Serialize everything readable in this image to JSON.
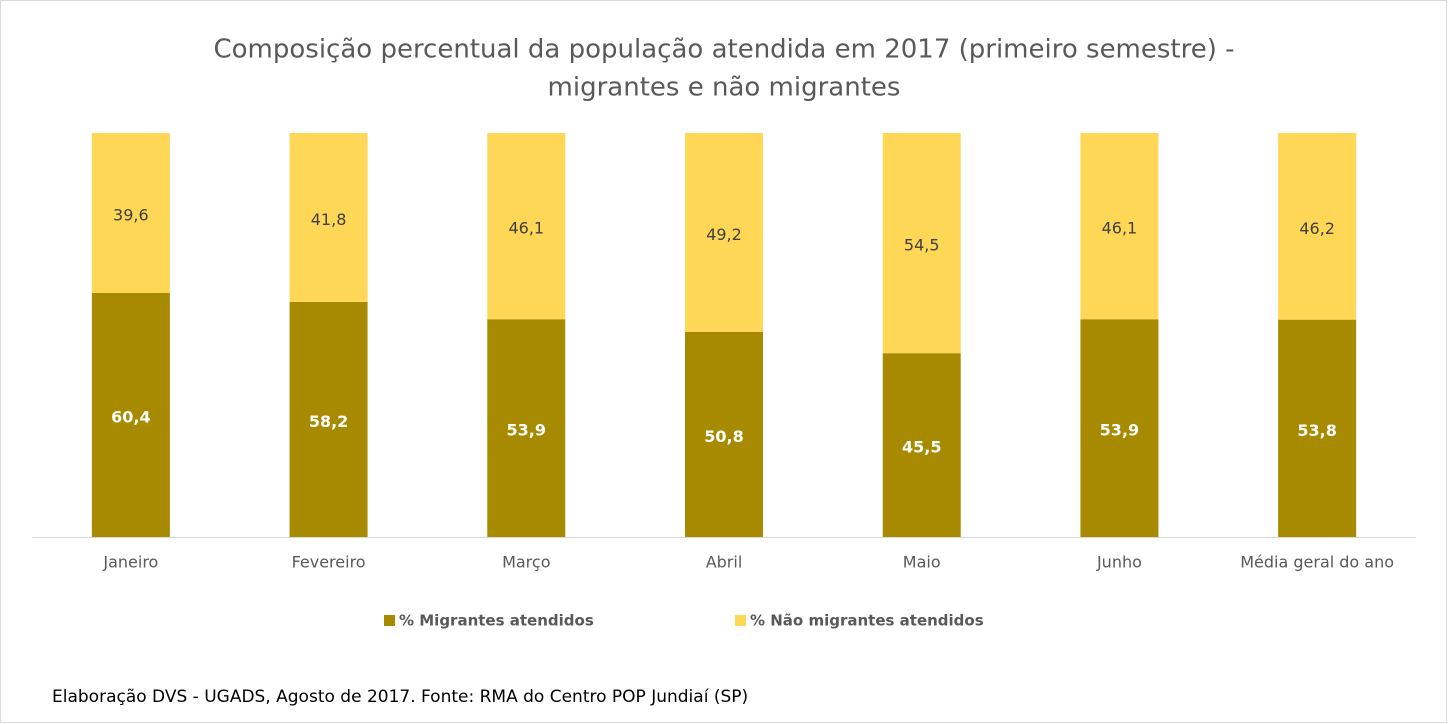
{
  "chart_data": {
    "type": "stacked_bar",
    "title": [
      "Composição percentual da população atendida em 2017 (primeiro semestre) -",
      "migrantes e não migrantes"
    ],
    "categories": [
      "Janeiro",
      "Fevereiro",
      "Março",
      "Abril",
      "Maio",
      "Junho",
      "Média geral do ano"
    ],
    "series": [
      {
        "name": "% Migrantes atendidos",
        "color": "#a88a00",
        "values": [
          60.4,
          58.2,
          53.9,
          50.8,
          45.5,
          53.9,
          53.8
        ],
        "value_labels": [
          "60,4",
          "58,2",
          "53,9",
          "50,8",
          "45,5",
          "53,9",
          "53,8"
        ]
      },
      {
        "name": "% Não migrantes atendidos",
        "color": "#ffd757",
        "values": [
          39.6,
          41.8,
          46.1,
          49.2,
          54.5,
          46.1,
          46.2
        ],
        "value_labels": [
          "39,6",
          "41,8",
          "46,1",
          "49,2",
          "54,5",
          "46,1",
          "46,2"
        ]
      }
    ],
    "ylim": [
      0,
      100
    ],
    "legend": "bottom",
    "footnote": "Elaboração DVS - UGADS, Agosto de 2017. Fonte: RMA do Centro POP Jundiaí (SP)"
  }
}
